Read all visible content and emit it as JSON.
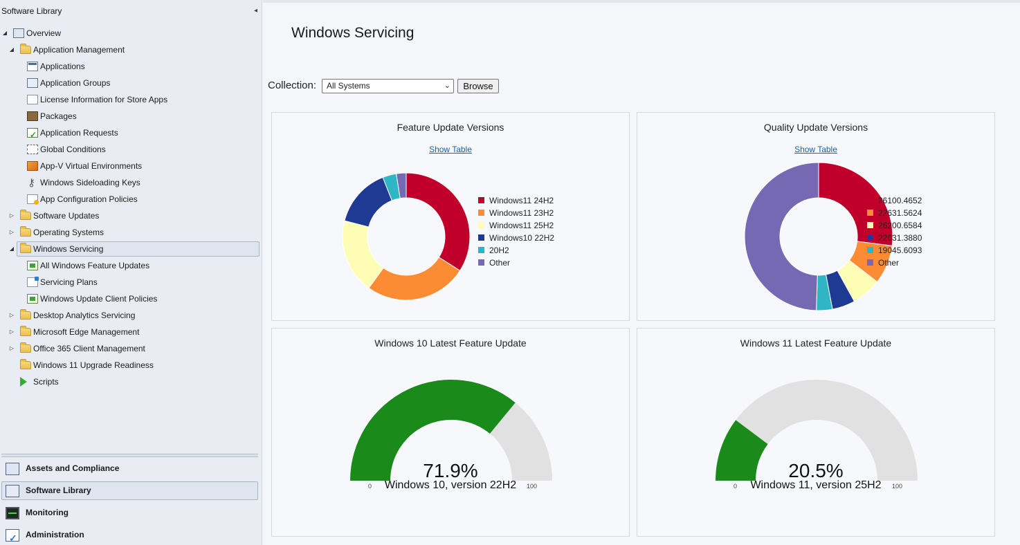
{
  "nav": {
    "header": "Software Library",
    "collapse_glyph": "◂",
    "tree": [
      {
        "label": "Overview",
        "icon": "overview-icon",
        "expander": "◢"
      },
      {
        "label": "Application Management",
        "icon": "folder-icon",
        "expander": "◢"
      },
      {
        "label": "Applications",
        "icon": "applications-icon"
      },
      {
        "label": "Application Groups",
        "icon": "application-groups-icon"
      },
      {
        "label": "License Information for Store Apps",
        "icon": "license-icon"
      },
      {
        "label": "Packages",
        "icon": "packages-icon"
      },
      {
        "label": "Application Requests",
        "icon": "application-requests-icon"
      },
      {
        "label": "Global Conditions",
        "icon": "global-conditions-icon"
      },
      {
        "label": "App-V Virtual Environments",
        "icon": "appv-icon"
      },
      {
        "label": "Windows Sideloading Keys",
        "icon": "key-icon"
      },
      {
        "label": "App Configuration Policies",
        "icon": "app-config-policy-icon"
      },
      {
        "label": "Software Updates",
        "icon": "folder-icon",
        "expander": "▷"
      },
      {
        "label": "Operating Systems",
        "icon": "folder-icon",
        "expander": "▷"
      },
      {
        "label": "Windows Servicing",
        "icon": "folder-icon",
        "expander": "◢"
      },
      {
        "label": "All Windows Feature Updates",
        "icon": "feature-updates-icon"
      },
      {
        "label": "Servicing Plans",
        "icon": "servicing-plans-icon"
      },
      {
        "label": "Windows Update Client Policies",
        "icon": "client-policies-icon"
      },
      {
        "label": "Desktop Analytics Servicing",
        "icon": "folder-icon",
        "expander": "▷"
      },
      {
        "label": "Microsoft Edge Management",
        "icon": "folder-icon",
        "expander": "▷"
      },
      {
        "label": "Office 365 Client Management",
        "icon": "folder-icon",
        "expander": "▷"
      },
      {
        "label": "Windows 11 Upgrade Readiness",
        "icon": "folder-icon"
      },
      {
        "label": "Scripts",
        "icon": "scripts-icon"
      }
    ],
    "selected_item": "Windows Servicing"
  },
  "wunderbar": {
    "items": [
      {
        "label": "Assets and Compliance",
        "icon": "assets-compliance-icon"
      },
      {
        "label": "Software Library",
        "icon": "software-library-icon"
      },
      {
        "label": "Monitoring",
        "icon": "monitoring-icon"
      },
      {
        "label": "Administration",
        "icon": "administration-icon"
      }
    ],
    "selected_item": "Software Library"
  },
  "main": {
    "title": "Windows Servicing",
    "collection_label": "Collection:",
    "collection_value": "All Systems",
    "collection_chevron": "⌄",
    "browse_label": "Browse"
  },
  "chart_data": [
    {
      "type": "pie",
      "title": "Feature Update Versions",
      "link": "Show Table",
      "categories": [
        "Windows11 24H2",
        "Windows11 23H2",
        "Windows11 25H2",
        "Windows10 22H2",
        "20H2",
        "Other"
      ],
      "values": [
        34,
        26,
        19,
        15,
        3.5,
        2.5
      ],
      "colors": [
        "#c0002a",
        "#fb8c33",
        "#fefdb5",
        "#1f3a93",
        "#2fb6c5",
        "#7569b3"
      ],
      "legend_position": "right"
    },
    {
      "type": "pie",
      "title": "Quality Update Versions",
      "link": "Show Table",
      "categories": [
        "26100.4652",
        "22631.5624",
        "26200.6584",
        "22631.3880",
        "19045.6093",
        "Other"
      ],
      "values": [
        27,
        8.5,
        6.5,
        5,
        3.5,
        49.5
      ],
      "colors": [
        "#c0002a",
        "#fb8c33",
        "#fefdb5",
        "#1f3a93",
        "#2fb6c5",
        "#7569b3"
      ],
      "legend_position": "right"
    },
    {
      "type": "gauge",
      "title": "Windows 10 Latest Feature Update",
      "value": 71.9,
      "value_label": "71.9%",
      "caption": "Windows 10, version 22H2",
      "min_label": "0",
      "max_label": "100",
      "range": [
        0,
        100
      ],
      "fill_color": "#1a8a1a",
      "track_color": "#e1e1e1"
    },
    {
      "type": "gauge",
      "title": "Windows 11 Latest Feature Update",
      "value": 20.5,
      "value_label": "20.5%",
      "caption": "Windows 11, version 25H2",
      "min_label": "0",
      "max_label": "100",
      "range": [
        0,
        100
      ],
      "fill_color": "#1a8a1a",
      "track_color": "#e1e1e1"
    }
  ]
}
